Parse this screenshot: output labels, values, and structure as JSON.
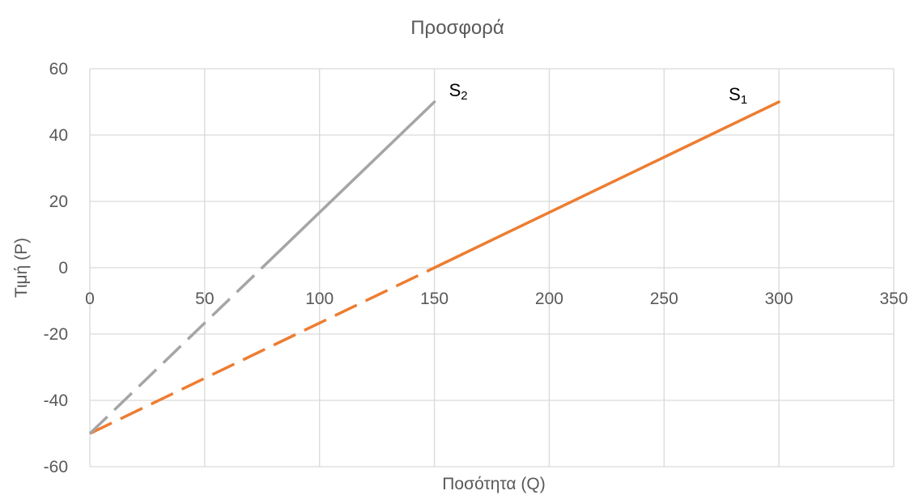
{
  "chart_data": {
    "type": "line",
    "title": "Προσφορά",
    "xlabel": "Ποσότητα (Q)",
    "ylabel": "Τιμή (P)",
    "xlim": [
      0,
      350
    ],
    "ylim": [
      -60,
      60
    ],
    "xticks": [
      0,
      50,
      100,
      150,
      200,
      250,
      300,
      350
    ],
    "yticks": [
      -60,
      -40,
      -20,
      0,
      20,
      40,
      60
    ],
    "grid": true,
    "series": [
      {
        "label_main": "S",
        "label_sub": "1",
        "color": "#ed7d31",
        "solid": [
          [
            150,
            0
          ],
          [
            300,
            50
          ]
        ],
        "dashed": [
          [
            0,
            -50
          ],
          [
            150,
            0
          ]
        ]
      },
      {
        "label_main": "S",
        "label_sub": "2",
        "color": "#a5a5a5",
        "solid": [
          [
            75,
            0
          ],
          [
            150,
            50
          ]
        ],
        "dashed": [
          [
            0,
            -50
          ],
          [
            75,
            0
          ]
        ]
      }
    ]
  }
}
